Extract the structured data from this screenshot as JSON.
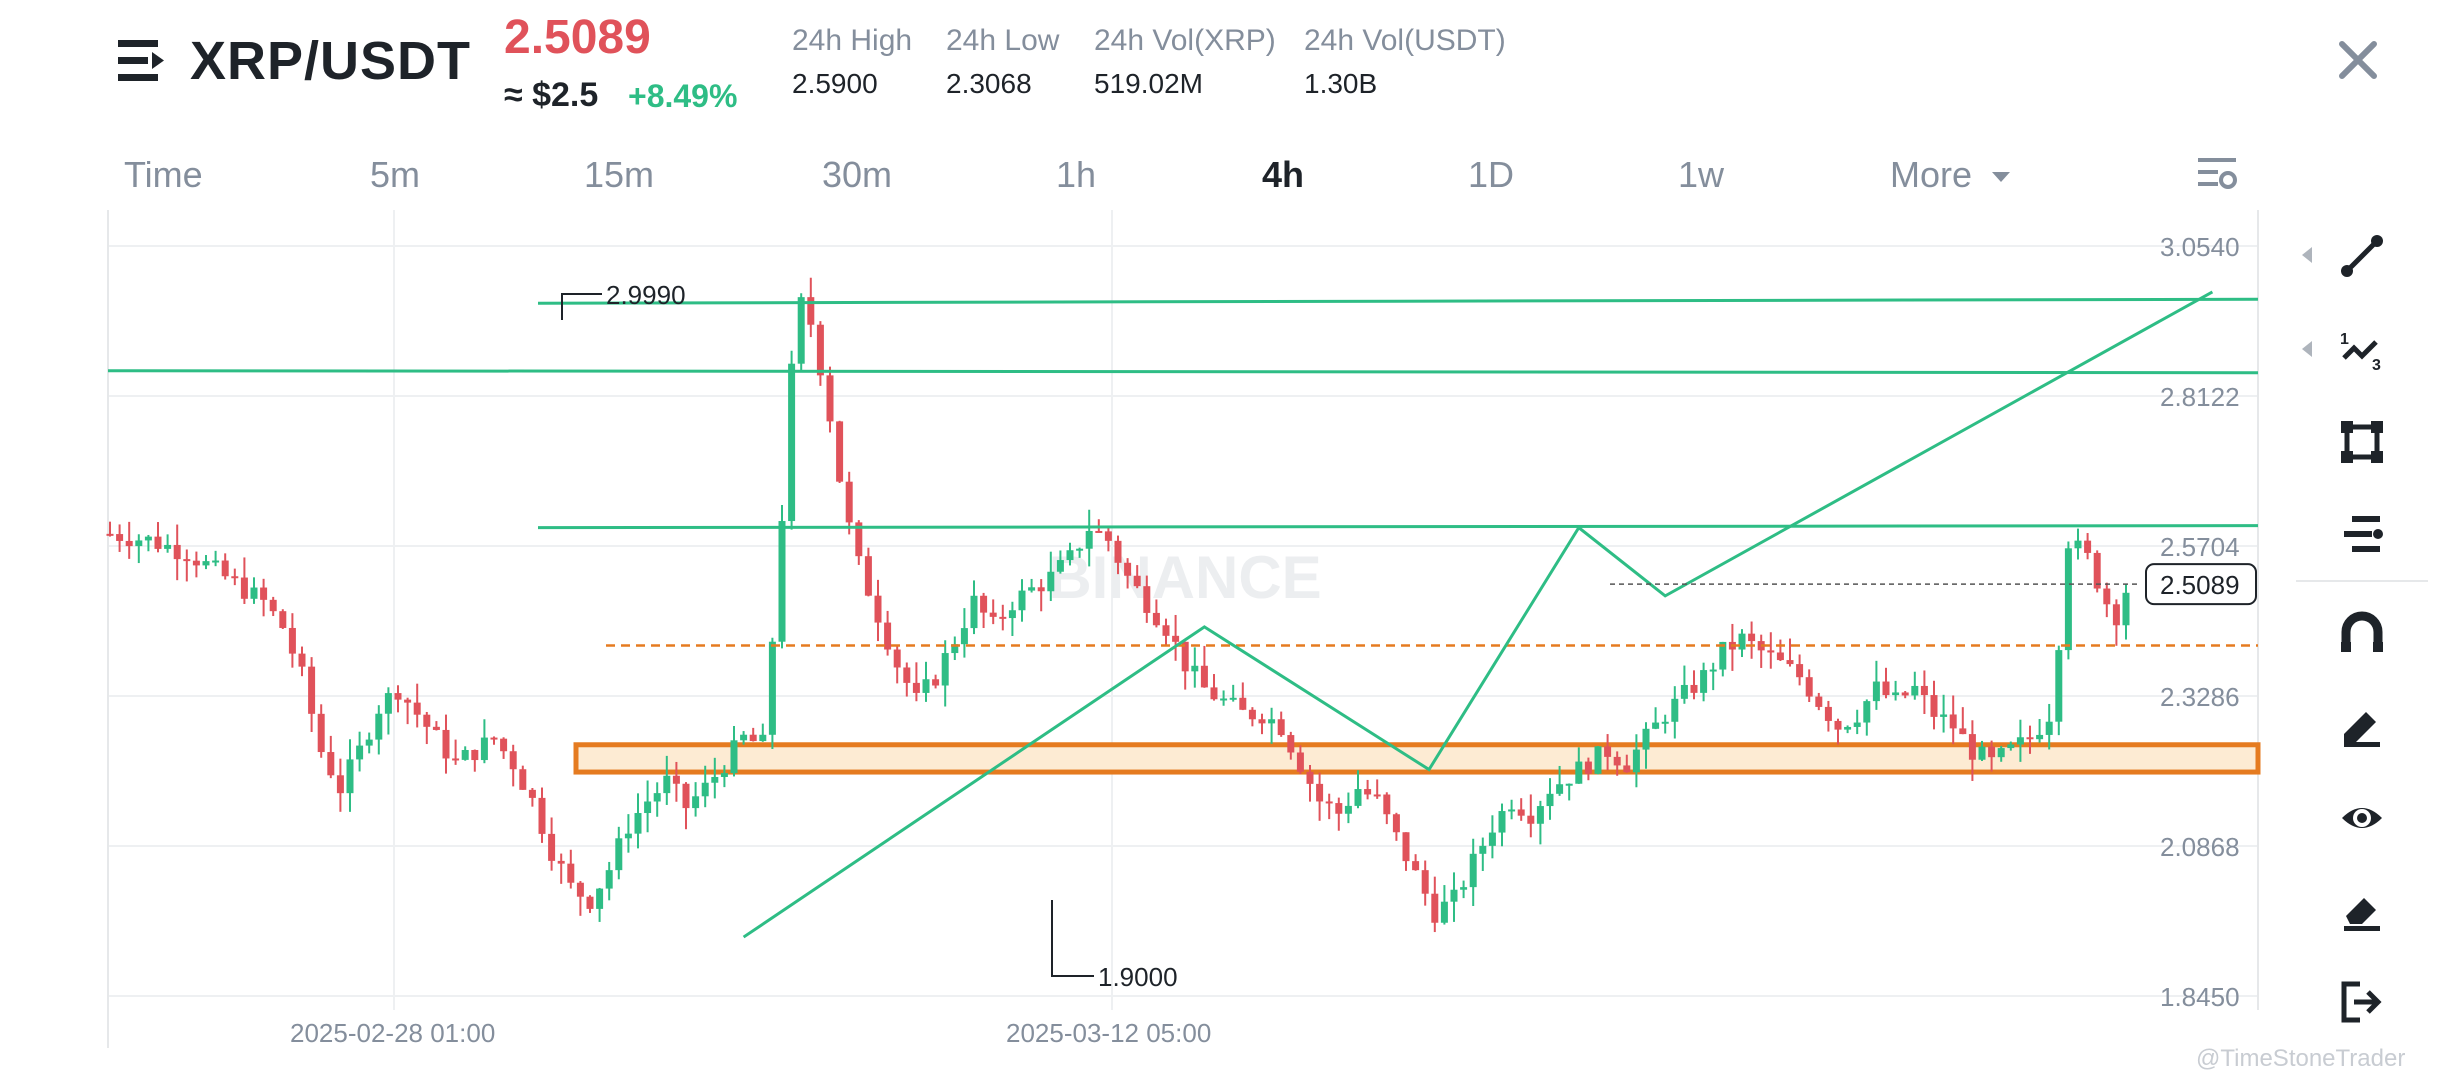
{
  "header": {
    "pair": "XRP/USDT",
    "price": "2.5089",
    "approx": "≈ $2.5",
    "change": "+8.49%",
    "stats": [
      {
        "label": "24h High",
        "value": "2.5900"
      },
      {
        "label": "24h Low",
        "value": "2.3068"
      },
      {
        "label": "24h Vol(XRP)",
        "value": "519.02M"
      },
      {
        "label": "24h Vol(USDT)",
        "value": "1.30B"
      }
    ]
  },
  "timeframes": [
    {
      "label": "Time",
      "active": false
    },
    {
      "label": "5m",
      "active": false
    },
    {
      "label": "15m",
      "active": false
    },
    {
      "label": "30m",
      "active": false
    },
    {
      "label": "1h",
      "active": false
    },
    {
      "label": "4h",
      "active": true
    },
    {
      "label": "1D",
      "active": false
    },
    {
      "label": "1w",
      "active": false
    },
    {
      "label": "More",
      "active": false
    }
  ],
  "chart_data": {
    "type": "candlestick",
    "y_ticks": [
      "3.0540",
      "2.8122",
      "2.5704",
      "2.3286",
      "2.0868",
      "1.8450"
    ],
    "y_tick_values": [
      3.054,
      2.8122,
      2.5704,
      2.3286,
      2.0868,
      1.845
    ],
    "x_ticks": [
      "2025-02-28 01:00",
      "2025-03-12 05:00"
    ],
    "current_price_tag": "2.5089",
    "current_price": 2.5089,
    "high_label": "2.9990",
    "high_value": 2.999,
    "low_label": "1.9000",
    "low_value": 1.9,
    "watermark": "BINANCE",
    "colors": {
      "up": "#2ebd85",
      "down": "#e0525a",
      "drawing": "#2ebd85",
      "zone": "#e57b20",
      "zone_fill": "#fdebd3"
    },
    "horizontal_lines": [
      2.965,
      2.853,
      2.6
    ],
    "dashed_level": 2.41,
    "zone": [
      2.206,
      2.25
    ],
    "pattern_path": [
      [
        2.2,
        1.94
      ],
      [
        3.8,
        2.44
      ],
      [
        4.58,
        2.21
      ],
      [
        5.1,
        2.6
      ],
      [
        5.4,
        2.49
      ],
      [
        7.3,
        2.98
      ]
    ]
  },
  "toolbar": {
    "tools": [
      "trend-line-tool",
      "fib-tool",
      "rectangle-tool",
      "text-tool",
      "magnet-tool",
      "pen-tool",
      "visibility-tool",
      "eraser-tool",
      "exit-tool"
    ]
  },
  "footer": {
    "credit": "@TimeStoneTrader"
  }
}
